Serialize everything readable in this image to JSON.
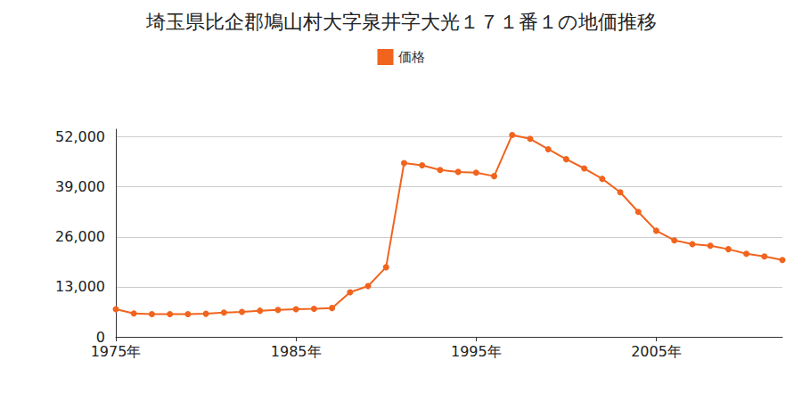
{
  "chart_data": {
    "type": "line",
    "title": "埼玉県比企郡鳩山村大字泉井字大光１７１番１の地価推移",
    "x": [
      1975,
      1976,
      1977,
      1978,
      1979,
      1980,
      1981,
      1982,
      1983,
      1984,
      1985,
      1986,
      1987,
      1988,
      1989,
      1990,
      1991,
      1992,
      1993,
      1994,
      1995,
      1996,
      1997,
      1998,
      1999,
      2000,
      2001,
      2002,
      2003,
      2004,
      2005,
      2006,
      2007,
      2008,
      2009,
      2010,
      2011,
      2012
    ],
    "series": [
      {
        "name": "価格",
        "color": "#f0641e",
        "marker": "circle",
        "values": [
          7200,
          6100,
          5900,
          5900,
          5900,
          6000,
          6300,
          6500,
          6800,
          7000,
          7200,
          7300,
          7500,
          11600,
          13200,
          18100,
          45200,
          44600,
          43400,
          42900,
          42700,
          41800,
          52500,
          51500,
          48800,
          46200,
          43800,
          41100,
          37600,
          32500,
          27600,
          25100,
          24100,
          23700,
          22800,
          21600,
          20900,
          20000
        ]
      }
    ],
    "xlim": [
      1975,
      2012
    ],
    "xticks": [
      {
        "value": 1975,
        "label": "1975年"
      },
      {
        "value": 1985,
        "label": "1985年"
      },
      {
        "value": 1995,
        "label": "1995年"
      },
      {
        "value": 2005,
        "label": "2005年"
      }
    ],
    "ylim": [
      0,
      54000
    ],
    "yticks": [
      0,
      {
        "value": 13000,
        "label": "13,000"
      },
      {
        "value": 26000,
        "label": "26,000"
      },
      {
        "value": 39000,
        "label": "39,000"
      },
      {
        "value": 52000,
        "label": "52,000"
      }
    ],
    "grid": true,
    "legend": "top"
  }
}
